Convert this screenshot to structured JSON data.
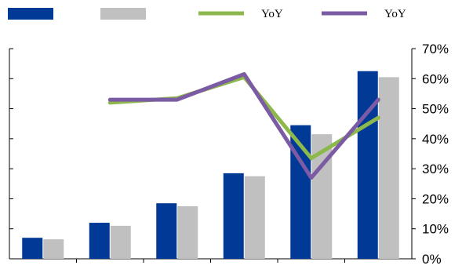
{
  "chart_data": {
    "type": "bar",
    "categories": [
      "",
      "",
      "",
      "",
      "",
      ""
    ],
    "series": [
      {
        "kind": "bar",
        "axis": "left",
        "color": "#003A96",
        "values": [
          1.4,
          2.4,
          3.7,
          5.7,
          8.9,
          12.5
        ]
      },
      {
        "kind": "bar",
        "axis": "left",
        "color": "#C0C0C0",
        "values": [
          1.3,
          2.2,
          3.5,
          5.5,
          8.3,
          12.1
        ]
      },
      {
        "kind": "line",
        "axis": "right",
        "name": "YoY",
        "color": "#8DB84C",
        "values": [
          null,
          52,
          53.5,
          60.5,
          33.5,
          47
        ]
      },
      {
        "kind": "line",
        "axis": "right",
        "name": "YoY",
        "color": "#7B5BA3",
        "values": [
          null,
          53,
          53,
          61.5,
          27,
          53
        ]
      }
    ],
    "y_left": {
      "min": 0,
      "max": 14,
      "ticks": [
        0,
        2,
        4,
        6,
        8,
        10,
        12,
        14
      ],
      "labels_visible": false
    },
    "y_right": {
      "min": 0,
      "max": 70,
      "ticks": [
        "0%",
        "10%",
        "20%",
        "30%",
        "40%",
        "50%",
        "60%",
        "70%"
      ]
    },
    "legend": {
      "position": "top"
    },
    "grid": false
  }
}
